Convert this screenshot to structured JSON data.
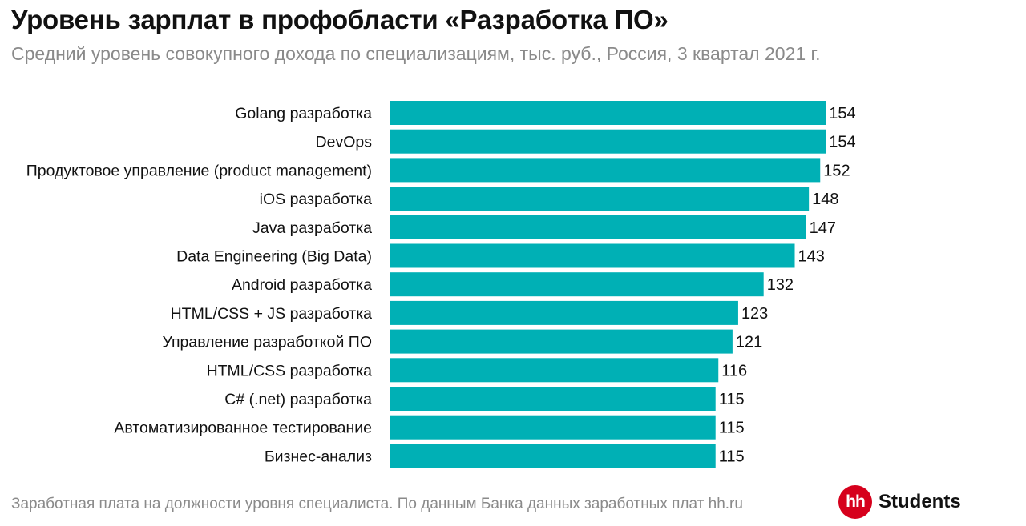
{
  "header": {
    "title": "Уровень зарплат в профобласти «Разработка ПО»",
    "subtitle": "Средний уровень совокупного дохода по специализациям, тыс. руб., Россия, 3 квартал 2021 г."
  },
  "footer": {
    "note": "Заработная плата на должности уровня специалиста. По данным Банка данных заработных плат hh.ru",
    "logo_mark": "hh",
    "logo_text": "Students"
  },
  "colors": {
    "bar": "#00b0b5",
    "logo": "#d6001c"
  },
  "chart_data": {
    "type": "bar",
    "orientation": "horizontal",
    "categories": [
      "Golang разработка",
      "DevOps",
      "Продуктовое управление (product management)",
      "iOS разработка",
      "Java разработка",
      "Data Engineering (Big Data)",
      "Android разработка",
      "HTML/CSS + JS разработка",
      "Управление разработкой ПО",
      "HTML/CSS разработка",
      "C# (.net) разработка",
      "Автоматизированное тестирование",
      "Бизнес-анализ"
    ],
    "values": [
      154,
      154,
      152,
      148,
      147,
      143,
      132,
      123,
      121,
      116,
      115,
      115,
      115
    ],
    "grid": false,
    "data_labels": true
  }
}
